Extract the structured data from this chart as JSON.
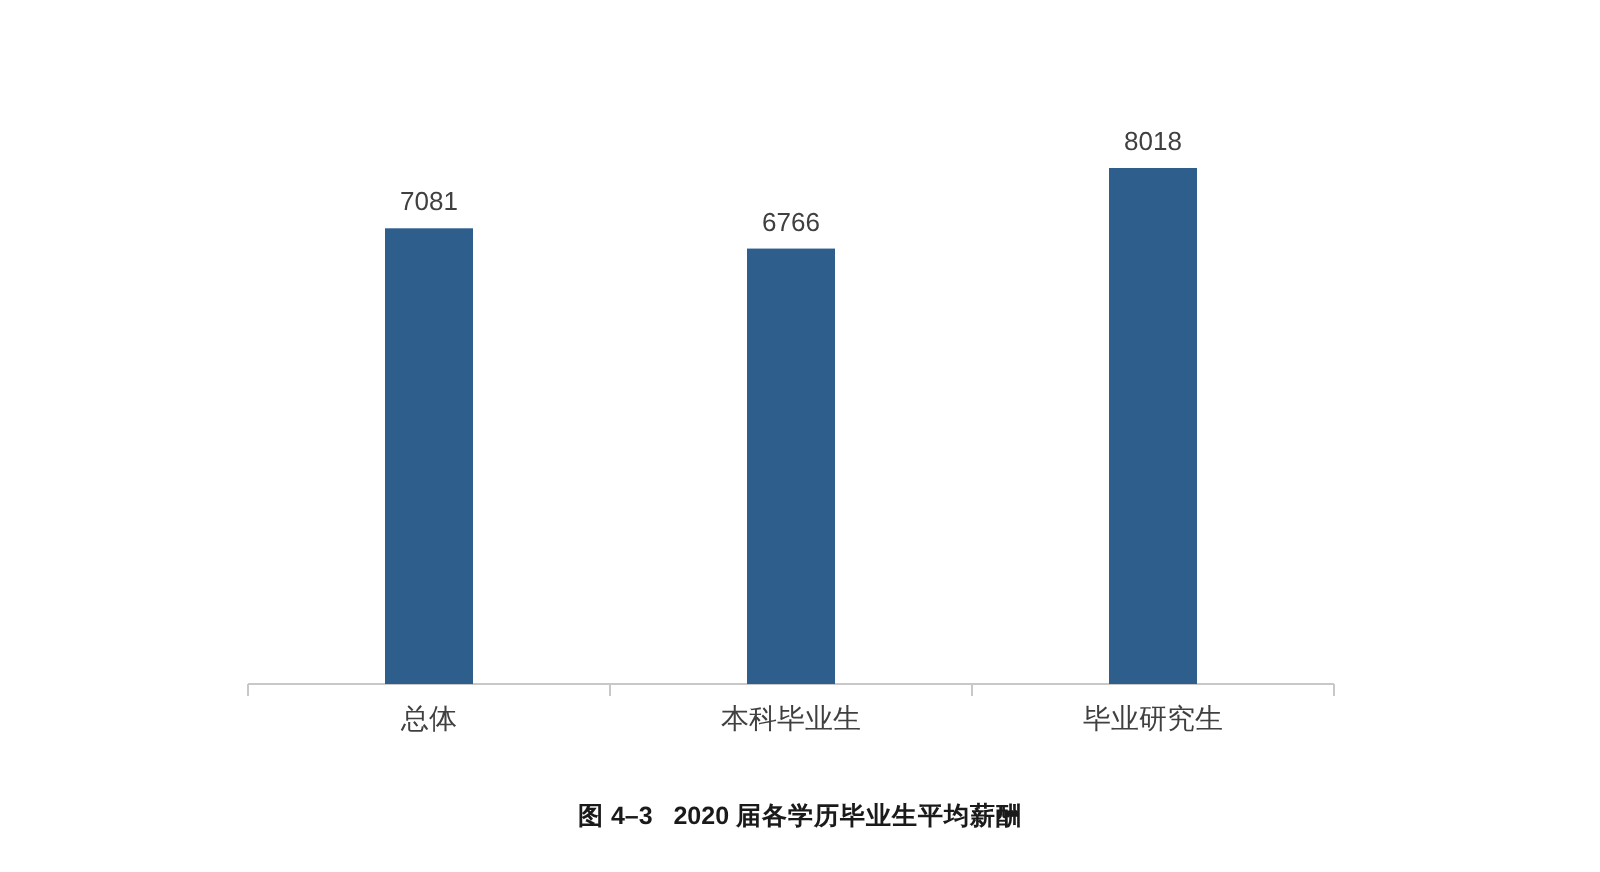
{
  "chart_data": {
    "type": "bar",
    "title": "图 4–3   2020 届各学历毕业生平均薪酬",
    "categories": [
      "总体",
      "本科毕业生",
      "毕业研究生"
    ],
    "values": [
      7081,
      6766,
      8018
    ],
    "color": "#2e5f8c",
    "data_labels": true
  }
}
